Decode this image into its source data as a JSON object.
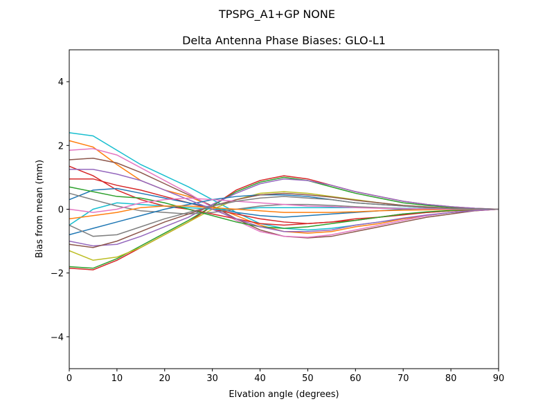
{
  "chart_data": {
    "type": "line",
    "suptitle": "TPSPG_A1+GP     NONE",
    "title": "Delta Antenna Phase Biases: GLO-L1",
    "xlabel": "Elvation angle (degrees)",
    "ylabel": "Bias from mean (mm)",
    "x": [
      0,
      5,
      10,
      15,
      20,
      25,
      30,
      35,
      40,
      45,
      50,
      55,
      60,
      65,
      70,
      75,
      80,
      85,
      90
    ],
    "xlim": [
      0,
      90
    ],
    "xticks": [
      0,
      10,
      20,
      30,
      40,
      50,
      60,
      70,
      80,
      90
    ],
    "ylim": [
      -5,
      5
    ],
    "yticks": [
      {
        "value": -4,
        "label": "−4"
      },
      {
        "value": -2,
        "label": "−2"
      },
      0,
      2,
      4
    ],
    "series": [
      {
        "color": "#17becf",
        "values": [
          2.4,
          2.3,
          1.85,
          1.4,
          1.05,
          0.7,
          0.3,
          -0.1,
          -0.45,
          -0.6,
          -0.65,
          -0.6,
          -0.5,
          -0.4,
          -0.3,
          -0.2,
          -0.1,
          -0.04,
          0
        ]
      },
      {
        "color": "#ff7f0e",
        "values": [
          2.15,
          1.95,
          1.4,
          0.9,
          0.6,
          0.4,
          0.1,
          -0.2,
          -0.5,
          -0.7,
          -0.75,
          -0.7,
          -0.55,
          -0.45,
          -0.3,
          -0.2,
          -0.1,
          -0.05,
          0
        ]
      },
      {
        "color": "#d62728",
        "values": [
          -1.85,
          -1.9,
          -1.6,
          -1.2,
          -0.8,
          -0.4,
          0.1,
          0.6,
          0.9,
          1.05,
          0.95,
          0.75,
          0.55,
          0.4,
          0.25,
          0.15,
          0.08,
          0.03,
          0
        ]
      },
      {
        "color": "#2ca02c",
        "values": [
          -1.8,
          -1.85,
          -1.55,
          -1.15,
          -0.75,
          -0.35,
          0.1,
          0.55,
          0.85,
          1.0,
          0.9,
          0.7,
          0.5,
          0.35,
          0.2,
          0.12,
          0.06,
          0.02,
          0
        ]
      },
      {
        "color": "#8c564b",
        "values": [
          1.55,
          1.6,
          1.45,
          1.15,
          0.8,
          0.45,
          0.1,
          -0.3,
          -0.65,
          -0.85,
          -0.9,
          -0.85,
          -0.7,
          -0.55,
          -0.4,
          -0.25,
          -0.15,
          -0.05,
          0
        ]
      },
      {
        "color": "#e377c2",
        "values": [
          1.85,
          1.9,
          1.7,
          1.3,
          0.9,
          0.5,
          0.05,
          -0.35,
          -0.7,
          -0.85,
          -0.88,
          -0.8,
          -0.65,
          -0.5,
          -0.35,
          -0.2,
          -0.1,
          -0.04,
          0
        ]
      },
      {
        "color": "#9467bd",
        "values": [
          -1.0,
          -1.15,
          -1.1,
          -0.85,
          -0.55,
          -0.25,
          0.15,
          0.5,
          0.8,
          0.95,
          0.9,
          0.75,
          0.55,
          0.4,
          0.25,
          0.15,
          0.08,
          0.03,
          0
        ]
      },
      {
        "color": "#d62728",
        "values": [
          1.35,
          1.05,
          0.6,
          0.3,
          0.1,
          0,
          -0.15,
          -0.3,
          -0.45,
          -0.5,
          -0.45,
          -0.4,
          -0.35,
          -0.25,
          -0.18,
          -0.1,
          -0.05,
          -0.02,
          0
        ]
      },
      {
        "color": "#d62728",
        "values": [
          0.95,
          0.95,
          0.75,
          0.6,
          0.4,
          0.2,
          0,
          -0.15,
          -0.3,
          -0.4,
          -0.45,
          -0.4,
          -0.3,
          -0.25,
          -0.15,
          -0.1,
          -0.05,
          -0.02,
          0
        ]
      },
      {
        "color": "#1f77b4",
        "values": [
          0.3,
          0.6,
          0.65,
          0.5,
          0.35,
          0.2,
          0.05,
          -0.1,
          -0.2,
          -0.25,
          -0.2,
          -0.15,
          -0.1,
          -0.05,
          0,
          0.02,
          0.02,
          0.01,
          0
        ]
      },
      {
        "color": "#17becf",
        "values": [
          -0.5,
          0,
          0.2,
          0.15,
          0.1,
          0.05,
          0,
          0,
          0.05,
          0.05,
          0.05,
          0.05,
          0.05,
          0.05,
          0.03,
          0.02,
          0.01,
          0,
          0
        ]
      },
      {
        "color": "#bcbd22",
        "values": [
          -1.3,
          -1.6,
          -1.5,
          -1.2,
          -0.8,
          -0.4,
          0,
          0.3,
          0.5,
          0.55,
          0.5,
          0.4,
          0.3,
          0.2,
          0.12,
          0.07,
          0.03,
          0.01,
          0
        ]
      },
      {
        "color": "#7f7f7f",
        "values": [
          0.5,
          0.3,
          0.1,
          -0.05,
          -0.1,
          -0.15,
          -0.1,
          0,
          0.1,
          0.15,
          0.15,
          0.12,
          0.08,
          0.05,
          0.02,
          0.01,
          0,
          0,
          0
        ]
      },
      {
        "color": "#1f77b4",
        "values": [
          -0.8,
          -0.6,
          -0.4,
          -0.2,
          0,
          0.15,
          0.3,
          0.4,
          0.45,
          0.45,
          0.4,
          0.3,
          0.2,
          0.15,
          0.1,
          0.05,
          0.02,
          0.01,
          0
        ]
      },
      {
        "color": "#2ca02c",
        "values": [
          0.7,
          0.55,
          0.4,
          0.35,
          0.2,
          0,
          -0.2,
          -0.4,
          -0.55,
          -0.6,
          -0.55,
          -0.45,
          -0.35,
          -0.25,
          -0.15,
          -0.08,
          -0.04,
          -0.01,
          0
        ]
      },
      {
        "color": "#ff7f0e",
        "values": [
          -0.3,
          -0.2,
          -0.1,
          0.05,
          0.1,
          0.1,
          0.05,
          0,
          -0.05,
          -0.1,
          -0.1,
          -0.1,
          -0.08,
          -0.05,
          -0.03,
          -0.02,
          -0.01,
          0,
          0
        ]
      },
      {
        "color": "#9467bd",
        "values": [
          1.25,
          1.25,
          1.1,
          0.9,
          0.6,
          0.3,
          0,
          -0.3,
          -0.55,
          -0.7,
          -0.7,
          -0.65,
          -0.5,
          -0.4,
          -0.28,
          -0.18,
          -0.1,
          -0.04,
          0
        ]
      },
      {
        "color": "#8c564b",
        "values": [
          -1.1,
          -1.2,
          -1.0,
          -0.7,
          -0.4,
          -0.15,
          0.1,
          0.3,
          0.45,
          0.5,
          0.45,
          0.38,
          0.28,
          0.2,
          0.12,
          0.07,
          0.03,
          0.01,
          0
        ]
      },
      {
        "color": "#e377c2",
        "values": [
          0.0,
          -0.1,
          0.0,
          0.2,
          0.3,
          0.35,
          0.3,
          0.25,
          0.2,
          0.15,
          0.1,
          0.08,
          0.05,
          0.03,
          0.02,
          0.01,
          0,
          0,
          0
        ]
      },
      {
        "color": "#7f7f7f",
        "values": [
          -0.5,
          -0.85,
          -0.8,
          -0.55,
          -0.3,
          -0.1,
          0.1,
          0.25,
          0.35,
          0.4,
          0.35,
          0.3,
          0.2,
          0.15,
          0.1,
          0.05,
          0.02,
          0.01,
          0
        ]
      }
    ]
  }
}
